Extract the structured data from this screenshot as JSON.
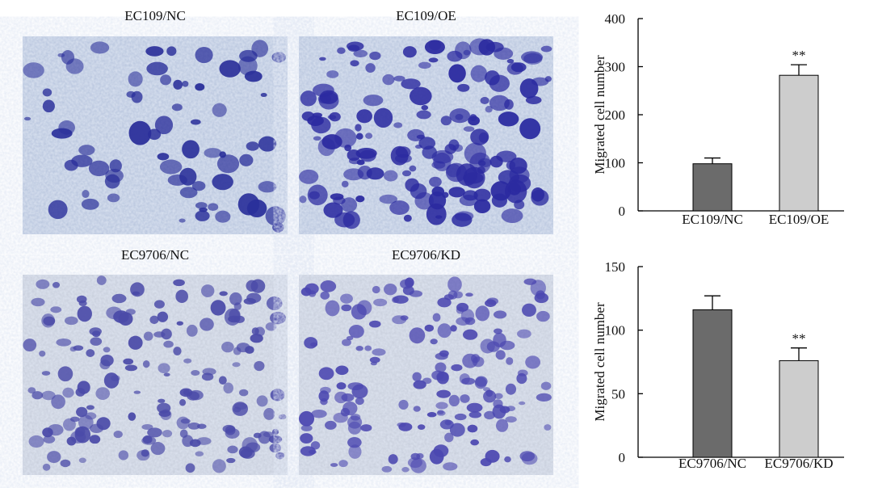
{
  "images": [
    {
      "label": "EC109/NC"
    },
    {
      "label": "EC109/OE"
    },
    {
      "label": "EC9706/NC"
    },
    {
      "label": "EC9706/KD"
    }
  ],
  "chart_data": [
    {
      "type": "bar",
      "y_label": "Migrated cell number",
      "categories": [
        "EC109/NC",
        "EC109/OE"
      ],
      "values": [
        98,
        282
      ],
      "errors": [
        12,
        22
      ],
      "colors": [
        "#6b6b6b",
        "#cdcdcd"
      ],
      "annotations": [
        null,
        "**"
      ],
      "ylim": [
        0,
        400
      ],
      "yticks": [
        0,
        100,
        200,
        300,
        400
      ]
    },
    {
      "type": "bar",
      "y_label": "Migrated cell number",
      "categories": [
        "EC9706/NC",
        "EC9706/KD"
      ],
      "values": [
        116,
        76
      ],
      "errors": [
        11,
        10
      ],
      "colors": [
        "#6b6b6b",
        "#cdcdcd"
      ],
      "annotations": [
        null,
        "**"
      ],
      "ylim": [
        0,
        150
      ],
      "yticks": [
        0,
        50,
        100,
        150
      ]
    }
  ]
}
